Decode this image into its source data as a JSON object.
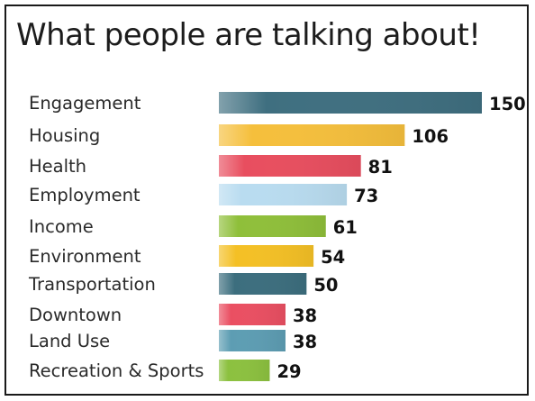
{
  "chart_data": {
    "type": "bar",
    "orientation": "horizontal",
    "title": "What people are talking about!",
    "categories": [
      "Engagement",
      "Housing",
      "Health",
      "Employment",
      "Income",
      "Environment",
      "Transportation",
      "Downtown",
      "Land Use",
      "Recreation & Sports"
    ],
    "values": [
      150,
      106,
      81,
      73,
      61,
      54,
      50,
      38,
      38,
      29
    ],
    "colors": [
      "#3f6f80",
      "#f5bf3c",
      "#e84e5f",
      "#b9dcf0",
      "#8fbf3a",
      "#f4c025",
      "#3c6e7e",
      "#ea4f62",
      "#5d9db3",
      "#8cc13f"
    ],
    "xlim": [
      0,
      150
    ],
    "xlabel": "",
    "ylabel": "",
    "grid": false,
    "legend": "none"
  }
}
